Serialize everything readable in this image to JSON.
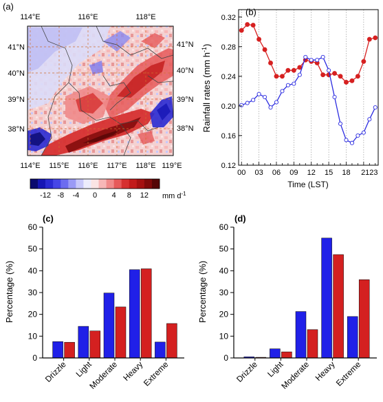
{
  "panels": {
    "a": {
      "label": "(a)"
    },
    "b": {
      "label": "(b)"
    },
    "c": {
      "label": "(c)"
    },
    "d": {
      "label": "(d)"
    }
  },
  "map": {
    "top_lon_labels": [
      "114°E",
      "116°E",
      "118°E"
    ],
    "bottom_lon_labels": [
      "114°E",
      "115°E",
      "116°E",
      "117°E",
      "118°E",
      "119°E"
    ],
    "left_lat_labels": [
      "41°N",
      "40°N",
      "39°N",
      "38°N"
    ],
    "right_lat_labels": [
      "41°N",
      "40°N",
      "39°N",
      "38°N"
    ],
    "colorbar": {
      "ticks": [
        "-12",
        "-8",
        "-4",
        "0",
        "4",
        "8",
        "12"
      ],
      "unit": "mm d",
      "unit_exp": "-1",
      "colors": [
        "#0a0a6e",
        "#1515b4",
        "#2a2ad2",
        "#4646e6",
        "#6c6cf0",
        "#9a9af6",
        "#c8c8fa",
        "#ececfc",
        "#fbe4e4",
        "#f7b7b7",
        "#f08a8a",
        "#e65a5a",
        "#d63030",
        "#c21a1a",
        "#a51010",
        "#800a0a",
        "#550606"
      ]
    }
  },
  "chart_data": [
    {
      "type": "line",
      "panel": "b",
      "xlabel": "Time (LST)",
      "ylabel_main": "Rainfall  rates (mm h",
      "ylabel_exp": "-1",
      "ylabel_close": ")",
      "x_tick_labels": [
        "00",
        "03",
        "06",
        "09",
        "12",
        "15",
        "18",
        "2123"
      ],
      "y_tick_labels": [
        "0.12",
        "0.16",
        "0.20",
        "0.24",
        "0.28",
        "0.32"
      ],
      "ylim": [
        0.12,
        0.33
      ],
      "xlim": [
        -0.5,
        23.5
      ],
      "series": [
        {
          "color": "#d62020",
          "marker": "filled-circle",
          "x": [
            0,
            1,
            2,
            3,
            4,
            5,
            6,
            7,
            8,
            9,
            10,
            11,
            12,
            13,
            14,
            15,
            16,
            17,
            18,
            19,
            20,
            21,
            22,
            23
          ],
          "values": [
            0.302,
            0.31,
            0.309,
            0.29,
            0.276,
            0.258,
            0.24,
            0.24,
            0.248,
            0.248,
            0.252,
            0.262,
            0.26,
            0.258,
            0.242,
            0.242,
            0.244,
            0.24,
            0.232,
            0.234,
            0.24,
            0.26,
            0.29,
            0.292
          ]
        },
        {
          "color": "#2a2ae0",
          "marker": "open-circle",
          "x": [
            0,
            1,
            2,
            3,
            4,
            5,
            6,
            7,
            8,
            9,
            10,
            11,
            12,
            13,
            14,
            15,
            16,
            17,
            18,
            19,
            20,
            21,
            22,
            23
          ],
          "values": [
            0.201,
            0.204,
            0.208,
            0.216,
            0.212,
            0.198,
            0.205,
            0.22,
            0.228,
            0.23,
            0.242,
            0.266,
            0.262,
            0.262,
            0.266,
            0.248,
            0.212,
            0.176,
            0.154,
            0.15,
            0.16,
            0.164,
            0.182,
            0.198
          ]
        }
      ]
    },
    {
      "type": "bar",
      "panel": "c",
      "categories": [
        "Drizzle",
        "Light",
        "Moderate",
        "Heavy",
        "Extreme"
      ],
      "ylabel": "Percentage (%)",
      "ylim": [
        0,
        60
      ],
      "y_tick_labels": [
        "0",
        "10",
        "20",
        "30",
        "40",
        "50",
        "60"
      ],
      "series": [
        {
          "color": "#2020e8",
          "values": [
            7.5,
            14.5,
            29.8,
            40.5,
            7.3
          ]
        },
        {
          "color": "#d42020",
          "values": [
            7.2,
            12.4,
            23.4,
            40.9,
            15.8
          ]
        }
      ]
    },
    {
      "type": "bar",
      "panel": "d",
      "categories": [
        "Drizzle",
        "Light",
        "Moderate",
        "Heavy",
        "Extreme"
      ],
      "ylabel": "Percentage (%)",
      "ylim": [
        0,
        60
      ],
      "y_tick_labels": [
        "0",
        "10",
        "20",
        "30",
        "40",
        "50",
        "60"
      ],
      "series": [
        {
          "color": "#2020e8",
          "values": [
            0.5,
            4.2,
            21.3,
            55.0,
            19.0
          ]
        },
        {
          "color": "#d42020",
          "values": [
            0.3,
            2.8,
            13.0,
            47.4,
            35.9
          ]
        }
      ]
    }
  ]
}
